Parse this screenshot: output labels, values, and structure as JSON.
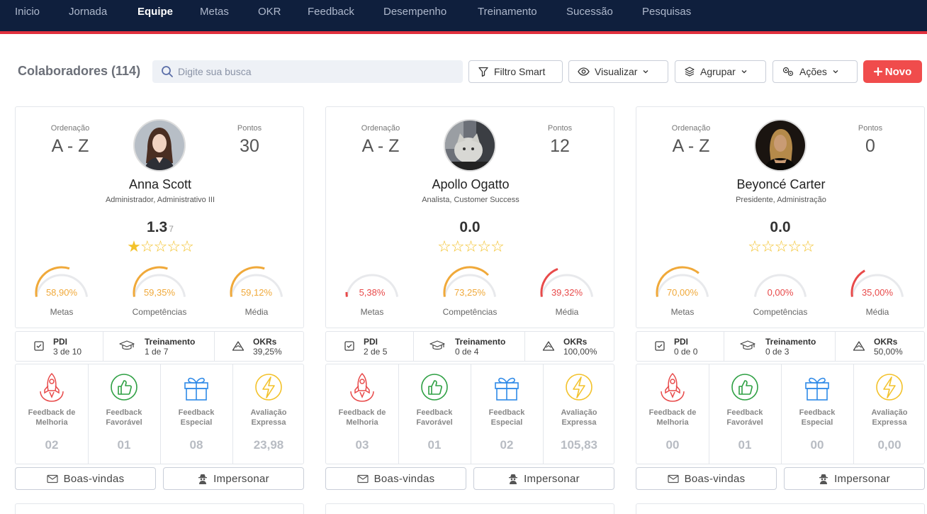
{
  "nav": {
    "items": [
      {
        "label": "Inicio",
        "active": false
      },
      {
        "label": "Jornada",
        "active": false
      },
      {
        "label": "Equipe",
        "active": true
      },
      {
        "label": "Metas",
        "active": false
      },
      {
        "label": "OKR",
        "active": false
      },
      {
        "label": "Feedback",
        "active": false
      },
      {
        "label": "Desempenho",
        "active": false
      },
      {
        "label": "Treinamento",
        "active": false
      },
      {
        "label": "Sucessão",
        "active": false
      },
      {
        "label": "Pesquisas",
        "active": false
      }
    ]
  },
  "toolbar": {
    "title": "Colaboradores (114)",
    "search_placeholder": "Digite sua busca",
    "filter_label": "Filtro Smart",
    "view_label": "Visualizar",
    "group_label": "Agrupar",
    "actions_label": "Ações",
    "new_label": "Novo"
  },
  "colors": {
    "nav_bg": "#0f1f3d",
    "accent_red": "#e0303e",
    "gauge_orange": "#f0a93a",
    "gauge_red": "#e84a4a",
    "star": "#f3c22b"
  },
  "labels": {
    "ordenacao": "Ordenação",
    "pontos": "Pontos",
    "metas": "Metas",
    "competencias": "Competências",
    "media": "Média",
    "pdi": "PDI",
    "treinamento": "Treinamento",
    "okrs": "OKRs",
    "fb_melhoria_1": "Feedback de",
    "fb_melhoria_2": "Melhoria",
    "fb_favoravel_1": "Feedback",
    "fb_favoravel_2": "Favorável",
    "fb_especial_1": "Feedback",
    "fb_especial_2": "Especial",
    "avaliacao_1": "Avaliação",
    "avaliacao_2": "Expressa",
    "boas_vindas": "Boas-vindas",
    "impersonar": "Impersonar"
  },
  "cards": [
    {
      "ordenacao": "A - Z",
      "pontos": "30",
      "name": "Anna Scott",
      "role": "Administrador, Administrativo III",
      "score": "1.3",
      "score_count": "7",
      "stars_filled": 1,
      "metas_pct": "58,90%",
      "metas_val": 0.589,
      "metas_color": "orange",
      "comp_pct": "59,35%",
      "comp_val": 0.5935,
      "comp_color": "orange",
      "media_pct": "59,12%",
      "media_val": 0.5912,
      "media_color": "orange",
      "pdi": "3 de 10",
      "treinamento": "1 de 7",
      "okrs": "39,25%",
      "fb_melhoria": "02",
      "fb_favoravel": "01",
      "fb_especial": "08",
      "avaliacao": "23,98",
      "avatar_icon": "woman-portrait-avatar"
    },
    {
      "ordenacao": "A - Z",
      "pontos": "12",
      "name": "Apollo Ogatto",
      "role": "Analista, Customer Success",
      "score": "0.0",
      "score_count": "",
      "stars_filled": 0,
      "metas_pct": "5,38%",
      "metas_val": 0.0538,
      "metas_color": "red",
      "comp_pct": "73,25%",
      "comp_val": 0.7325,
      "comp_color": "orange",
      "media_pct": "39,32%",
      "media_val": 0.3932,
      "media_color": "red",
      "pdi": "2 de 5",
      "treinamento": "0 de 4",
      "okrs": "100,00%",
      "fb_melhoria": "03",
      "fb_favoravel": "01",
      "fb_especial": "02",
      "avaliacao": "105,83",
      "avatar_icon": "cat-portrait-avatar"
    },
    {
      "ordenacao": "A - Z",
      "pontos": "0",
      "name": "Beyoncé Carter",
      "role": "Presidente, Administração",
      "score": "0.0",
      "score_count": "",
      "stars_filled": 0,
      "metas_pct": "70,00%",
      "metas_val": 0.7,
      "metas_color": "orange",
      "comp_pct": "0,00%",
      "comp_val": 0.0,
      "comp_color": "red",
      "media_pct": "35,00%",
      "media_val": 0.35,
      "media_color": "red",
      "pdi": "0 de 0",
      "treinamento": "0 de 3",
      "okrs": "50,00%",
      "fb_melhoria": "00",
      "fb_favoravel": "01",
      "fb_especial": "00",
      "avaliacao": "0,00",
      "avatar_icon": "woman-dark-portrait-avatar"
    }
  ]
}
